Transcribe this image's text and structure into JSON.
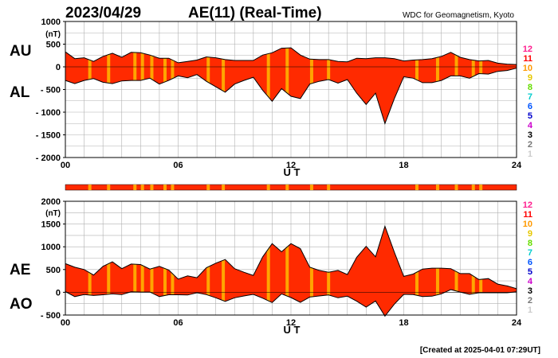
{
  "header": {
    "date": "2023/04/29",
    "title": "AE(11) (Real-Time)",
    "source": "WDC for Geomagnetism, Kyoto"
  },
  "footer": {
    "created": "[Created at 2025-04-01 07:29UT]"
  },
  "colors": {
    "fill": "#ff2a00",
    "highlight": "#ffa500",
    "outline": "#000000",
    "grid": "#b0b0b0"
  },
  "legend_levels": [
    {
      "label": "12",
      "color": "#ff1f8f"
    },
    {
      "label": "11",
      "color": "#ff0000"
    },
    {
      "label": "10",
      "color": "#ff9900"
    },
    {
      "label": "9",
      "color": "#e6c800"
    },
    {
      "label": "8",
      "color": "#66dd00"
    },
    {
      "label": "7",
      "color": "#00cccc"
    },
    {
      "label": "6",
      "color": "#0055ff"
    },
    {
      "label": "5",
      "color": "#0000cc"
    },
    {
      "label": "4",
      "color": "#cc00cc"
    },
    {
      "label": "3",
      "color": "#000000"
    },
    {
      "label": "2",
      "color": "#777777"
    },
    {
      "label": "1",
      "color": "#cccccc"
    }
  ],
  "status_bar_highlights_ut": [
    1.3,
    2.3,
    3.7,
    4.1,
    4.6,
    5.3,
    5.7,
    7.6,
    8.4,
    10.8,
    11.8,
    13.1,
    14.0,
    18.7,
    19.8,
    20.8,
    21.7,
    22.1
  ],
  "chart_data": [
    {
      "type": "area",
      "panel": "top",
      "ylabel": "(nT)",
      "series_labels": {
        "upper": "AU",
        "lower": "AL"
      },
      "xlabel": "U T",
      "x_ticks": [
        "00",
        "06",
        "12",
        "18",
        "24"
      ],
      "xlim": [
        0,
        24
      ],
      "y_ticks": [
        "1000",
        "500",
        "0",
        "- 500",
        "- 1000",
        "- 1500",
        "- 2000"
      ],
      "ylim": [
        -2000,
        1000
      ],
      "grid": true,
      "x": [
        0,
        0.5,
        1,
        1.5,
        2,
        2.5,
        3,
        3.5,
        4,
        4.5,
        5,
        5.5,
        6,
        6.5,
        7,
        7.5,
        8,
        8.5,
        9,
        9.5,
        10,
        10.5,
        11,
        11.5,
        12,
        12.5,
        13,
        13.5,
        14,
        14.5,
        15,
        15.5,
        16,
        16.5,
        17,
        17.5,
        18,
        18.5,
        19,
        19.5,
        20,
        20.5,
        21,
        21.5,
        22,
        22.5,
        23,
        23.5,
        24
      ],
      "upper": [
        330,
        180,
        200,
        120,
        230,
        300,
        210,
        320,
        310,
        260,
        190,
        190,
        90,
        120,
        150,
        220,
        200,
        160,
        140,
        140,
        140,
        260,
        310,
        410,
        420,
        260,
        170,
        160,
        160,
        120,
        110,
        190,
        180,
        200,
        200,
        180,
        130,
        150,
        160,
        180,
        230,
        320,
        210,
        160,
        130,
        140,
        80,
        60,
        50
      ],
      "lower": [
        -300,
        -370,
        -300,
        -260,
        -340,
        -370,
        -310,
        -300,
        -300,
        -250,
        -380,
        -300,
        -200,
        -240,
        -170,
        -320,
        -440,
        -560,
        -380,
        -300,
        -230,
        -520,
        -760,
        -480,
        -650,
        -700,
        -380,
        -320,
        -280,
        -360,
        -280,
        -580,
        -830,
        -580,
        -1250,
        -700,
        -220,
        -250,
        -350,
        -350,
        -300,
        -200,
        -200,
        -250,
        -150,
        -160,
        -100,
        -80,
        -30
      ],
      "highlights_ut": [
        1.3,
        2.3,
        3.7,
        4.1,
        4.6,
        5.3,
        5.7,
        7.6,
        8.4,
        10.8,
        11.8,
        13.1,
        14.0,
        18.7,
        19.8,
        20.8,
        21.7,
        22.1
      ]
    },
    {
      "type": "area",
      "panel": "bottom",
      "ylabel": "(nT)",
      "series_labels": {
        "upper": "AE",
        "lower": "AO"
      },
      "xlabel": "U T",
      "x_ticks": [
        "00",
        "06",
        "12",
        "18",
        "24"
      ],
      "xlim": [
        0,
        24
      ],
      "y_ticks": [
        "2000",
        "1500",
        "1000",
        "500",
        "0",
        "- 500"
      ],
      "ylim": [
        -500,
        2000
      ],
      "grid": true,
      "x": [
        0,
        0.5,
        1,
        1.5,
        2,
        2.5,
        3,
        3.5,
        4,
        4.5,
        5,
        5.5,
        6,
        6.5,
        7,
        7.5,
        8,
        8.5,
        9,
        9.5,
        10,
        10.5,
        11,
        11.5,
        12,
        12.5,
        13,
        13.5,
        14,
        14.5,
        15,
        15.5,
        16,
        16.5,
        17,
        17.5,
        18,
        18.5,
        19,
        19.5,
        20,
        20.5,
        21,
        21.5,
        22,
        22.5,
        23,
        23.5,
        24
      ],
      "upper": [
        630,
        550,
        500,
        380,
        570,
        670,
        520,
        620,
        610,
        510,
        570,
        490,
        290,
        360,
        320,
        540,
        640,
        720,
        520,
        440,
        370,
        780,
        1070,
        890,
        1070,
        960,
        550,
        480,
        440,
        480,
        390,
        770,
        1010,
        780,
        1450,
        880,
        350,
        400,
        510,
        530,
        530,
        520,
        410,
        410,
        280,
        300,
        180,
        140,
        80
      ],
      "lower": [
        15,
        -95,
        -50,
        -70,
        -55,
        -35,
        -50,
        10,
        5,
        5,
        -95,
        -55,
        -55,
        -60,
        -10,
        -50,
        -120,
        -200,
        -120,
        -80,
        -45,
        -130,
        -225,
        -35,
        -115,
        -220,
        -105,
        -80,
        -60,
        -120,
        -85,
        -195,
        -325,
        -190,
        -525,
        -260,
        -45,
        -50,
        -95,
        -85,
        -35,
        60,
        5,
        -45,
        -10,
        -10,
        -10,
        -10,
        10
      ],
      "highlights_ut": [
        1.3,
        2.3,
        3.7,
        4.1,
        4.6,
        5.3,
        5.7,
        7.6,
        8.4,
        10.8,
        11.8,
        13.1,
        14.0,
        18.7,
        19.8,
        20.8,
        21.7,
        22.1
      ]
    }
  ]
}
